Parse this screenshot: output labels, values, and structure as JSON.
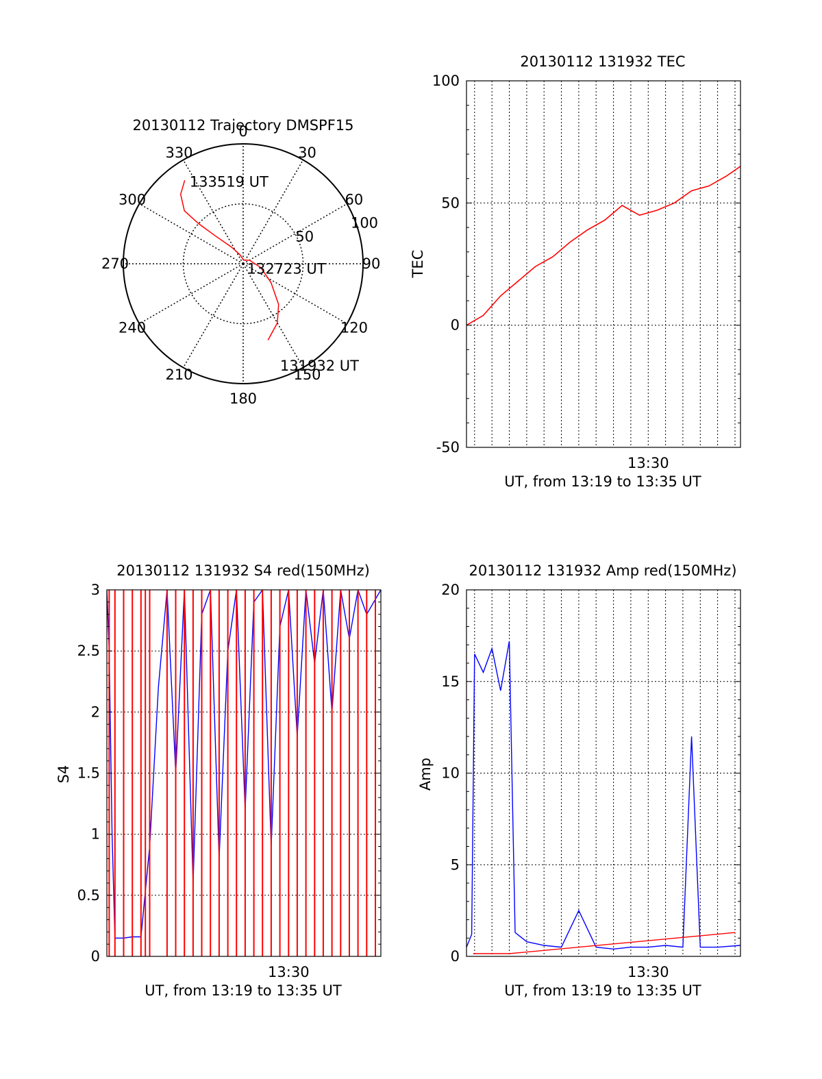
{
  "chart_data": [
    {
      "type": "polar",
      "title": "20130112 Trajectory DMSPF15",
      "azimuth_labels": [
        "0",
        "30",
        "60",
        "90",
        "120",
        "150",
        "180",
        "210",
        "240",
        "270",
        "300",
        "330"
      ],
      "radial_labels": [
        "50",
        "100"
      ],
      "rlim": [
        0,
        100
      ],
      "grid": true,
      "series": [
        {
          "color": "#ff0000",
          "points": [
            [
              162,
              67
            ],
            [
              150,
              57
            ],
            [
              139,
              45
            ],
            [
              124,
              28
            ],
            [
              102,
              15
            ],
            [
              60,
              6
            ],
            [
              10,
              3
            ],
            [
              -20,
              8
            ],
            [
              -35,
              17
            ],
            [
              -45,
              33
            ],
            [
              -48,
              50
            ],
            [
              -48,
              66
            ],
            [
              -42,
              78
            ],
            [
              -35,
              85
            ]
          ]
        }
      ],
      "annotations": [
        {
          "text": "133519 UT",
          "az": -33,
          "r": 82
        },
        {
          "text": "132723 UT",
          "az": 140,
          "r": 5
        },
        {
          "text": "131932 UT",
          "az": 160,
          "r": 90
        }
      ]
    },
    {
      "type": "line",
      "title": "20130112 131932 TEC",
      "xlabel": "UT, from 13:19 to 13:35 UT",
      "ylabel": "TEC",
      "xlim": [
        "13:19:32",
        "13:35:19"
      ],
      "ylim": [
        -50,
        100
      ],
      "x_tick_labels": [
        "13:30"
      ],
      "y_tick_labels": [
        "-50",
        "0",
        "50",
        "100"
      ],
      "grid": true,
      "series": [
        {
          "color": "#ff0000",
          "x": [
            "13:19:32",
            "13:20:30",
            "13:21:30",
            "13:22:30",
            "13:23:30",
            "13:24:30",
            "13:25:30",
            "13:26:30",
            "13:27:30",
            "13:28:00",
            "13:28:30",
            "13:29:30",
            "13:30:30",
            "13:31:30",
            "13:32:30",
            "13:33:30",
            "13:34:30",
            "13:35:19"
          ],
          "y": [
            0,
            4,
            12,
            18,
            24,
            28,
            34,
            39,
            43,
            46,
            49,
            45,
            47,
            50,
            55,
            57,
            61,
            65
          ]
        }
      ]
    },
    {
      "type": "line",
      "title": "20130112 131932 S4 red(150MHz)",
      "xlabel": "UT, from 13:19 to 13:35 UT",
      "ylabel": "S4",
      "xlim": [
        "13:19:32",
        "13:35:19"
      ],
      "ylim": [
        0,
        3
      ],
      "x_tick_labels": [
        "13:30"
      ],
      "y_tick_labels": [
        "0",
        "0.5",
        "1",
        "1.5",
        "2",
        "2.5",
        "3"
      ],
      "grid": true,
      "series": [
        {
          "color": "#0000ff",
          "x": [
            "13:19:32",
            "13:19:40",
            "13:19:50",
            "13:20:00",
            "13:20:30",
            "13:21:00",
            "13:21:30",
            "13:22:00",
            "13:22:30",
            "13:23:00",
            "13:23:30",
            "13:24:00",
            "13:24:30",
            "13:25:00",
            "13:25:30",
            "13:26:00",
            "13:26:30",
            "13:27:00",
            "13:27:30",
            "13:28:00",
            "13:28:30",
            "13:29:00",
            "13:29:30",
            "13:30:00",
            "13:30:30",
            "13:31:00",
            "13:31:30",
            "13:32:00",
            "13:32:30",
            "13:33:00",
            "13:33:30",
            "13:34:00",
            "13:34:30",
            "13:35:19"
          ],
          "y": [
            3.0,
            2.5,
            1.0,
            0.15,
            0.15,
            0.16,
            0.16,
            0.9,
            2.2,
            3.0,
            1.5,
            3.0,
            0.6,
            2.8,
            3.0,
            0.8,
            2.5,
            3.0,
            1.2,
            2.9,
            3.0,
            0.9,
            2.7,
            3.0,
            1.8,
            3.0,
            2.4,
            3.0,
            2.0,
            3.0,
            2.6,
            3.0,
            2.8,
            3.0
          ]
        },
        {
          "color": "#ff0000",
          "x": [
            "13:19:40",
            "13:20:00",
            "13:20:30",
            "13:21:00",
            "13:21:30",
            "13:21:45",
            "13:22:00",
            "13:23:00",
            "13:23:30",
            "13:24:00",
            "13:24:30",
            "13:25:00",
            "13:25:30",
            "13:26:00",
            "13:26:30",
            "13:27:00",
            "13:27:30",
            "13:28:00",
            "13:28:30",
            "13:29:00",
            "13:29:30",
            "13:30:00",
            "13:30:30",
            "13:31:00",
            "13:31:30",
            "13:32:00",
            "13:32:30",
            "13:33:00",
            "13:33:30",
            "13:34:00",
            "13:34:30",
            "13:35:00"
          ],
          "y": [
            3,
            3,
            3,
            3,
            3,
            3,
            3,
            3,
            3,
            3,
            3,
            3,
            3,
            3,
            3,
            3,
            3,
            3,
            3,
            3,
            3,
            3,
            3,
            3,
            3,
            3,
            3,
            3,
            3,
            3,
            3,
            3
          ]
        }
      ]
    },
    {
      "type": "line",
      "title": "20130112 131932 Amp red(150MHz)",
      "xlabel": "UT, from 13:19 to 13:35 UT",
      "ylabel": "Amp",
      "xlim": [
        "13:19:32",
        "13:35:19"
      ],
      "ylim": [
        0,
        20
      ],
      "x_tick_labels": [
        "13:30"
      ],
      "y_tick_labels": [
        "0",
        "5",
        "10",
        "15",
        "20"
      ],
      "grid": true,
      "series": [
        {
          "color": "#0000ff",
          "x": [
            "13:19:32",
            "13:19:50",
            "13:20:00",
            "13:20:30",
            "13:21:00",
            "13:21:30",
            "13:22:00",
            "13:22:20",
            "13:23:00",
            "13:24:00",
            "13:25:00",
            "13:26:00",
            "13:27:00",
            "13:28:00",
            "13:29:00",
            "13:30:00",
            "13:31:00",
            "13:32:00",
            "13:32:30",
            "13:33:00",
            "13:34:00",
            "13:35:19"
          ],
          "y": [
            0.5,
            1.2,
            16.5,
            15.5,
            16.8,
            14.5,
            17.2,
            1.3,
            0.8,
            0.6,
            0.5,
            2.5,
            0.5,
            0.4,
            0.5,
            0.5,
            0.6,
            0.5,
            12.0,
            0.5,
            0.5,
            0.6
          ]
        },
        {
          "color": "#ff0000",
          "x": [
            "13:19:55",
            "13:20:30",
            "13:21:00",
            "13:21:30",
            "13:22:00",
            "13:35:00"
          ],
          "y": [
            0.15,
            0.15,
            0.15,
            0.15,
            0.15,
            1.3
          ]
        }
      ]
    }
  ]
}
